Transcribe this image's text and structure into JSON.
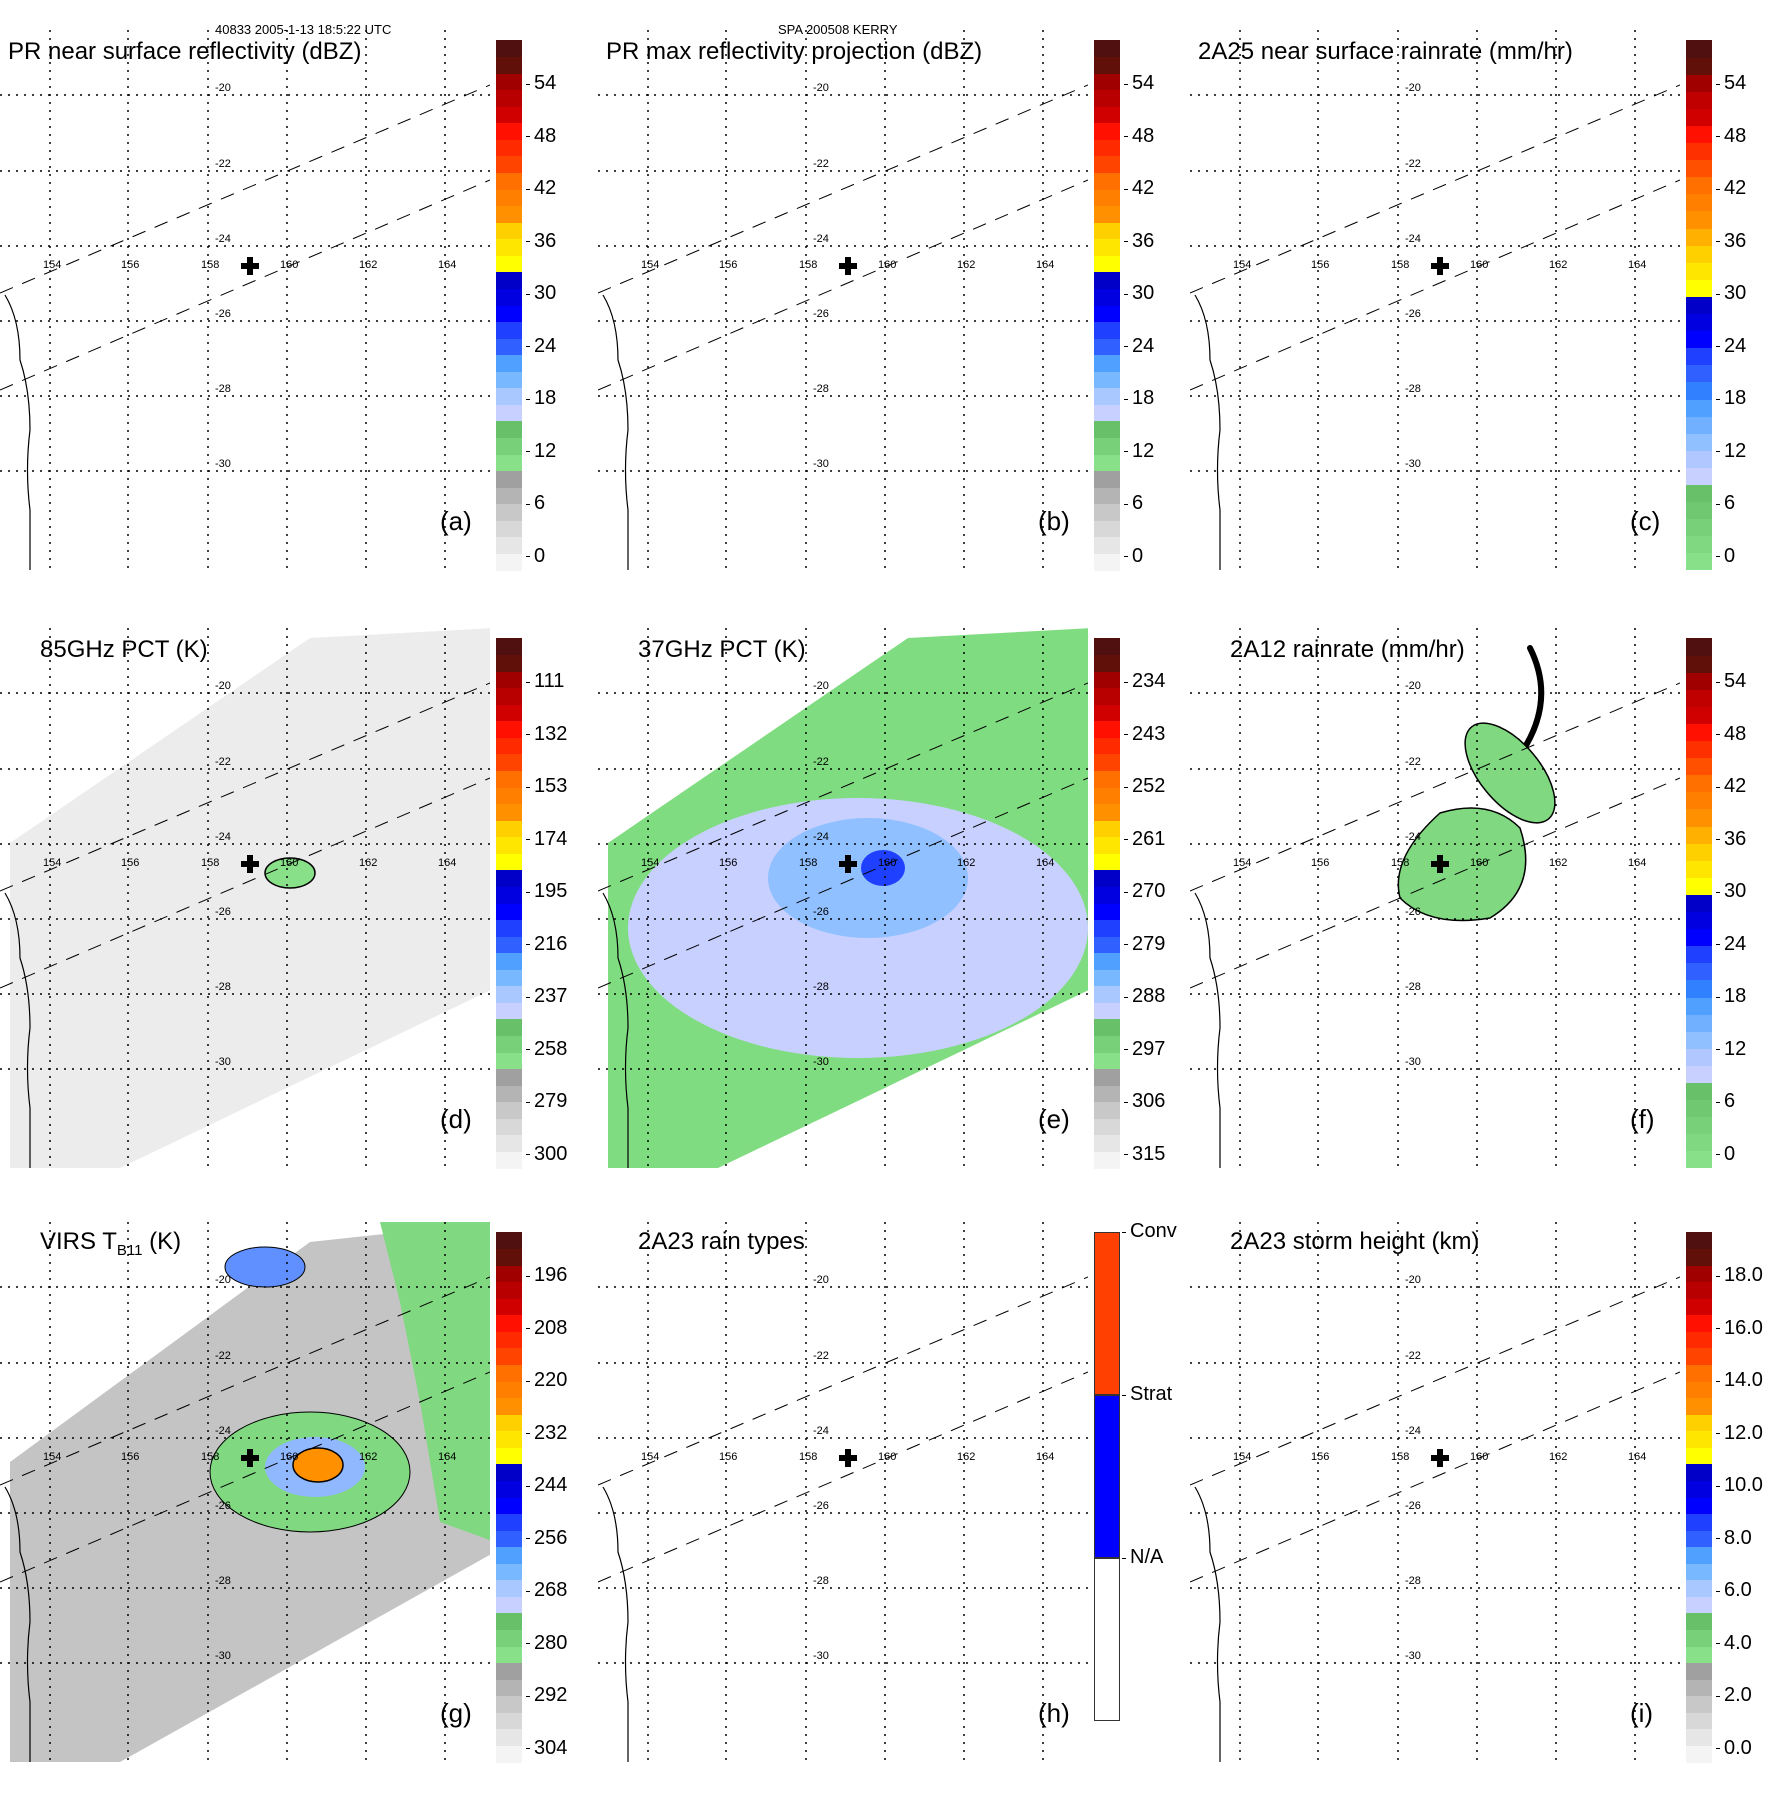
{
  "header": {
    "left": "40833 2005-1-13 18:5:22 UTC",
    "center": "SPA 200508 KERRY"
  },
  "map_axes": {
    "lon_labels": [
      "154",
      "156",
      "158",
      "160",
      "162",
      "164"
    ],
    "lat_labels": [
      "-20",
      "-22",
      "-24",
      "-26",
      "-28",
      "-30"
    ],
    "storm_center_marker": "plus-icon"
  },
  "panels": [
    {
      "id": "a",
      "title": "PR near surface reflectivity (dBZ)",
      "label": "(a)",
      "colorbar": {
        "ticks": [
          "54",
          "48",
          "42",
          "36",
          "30",
          "24",
          "18",
          "12",
          "6",
          "0"
        ],
        "range": [
          0,
          60
        ]
      }
    },
    {
      "id": "b",
      "title": "PR max reflectivity projection (dBZ)",
      "label": "(b)",
      "colorbar": {
        "ticks": [
          "54",
          "48",
          "42",
          "36",
          "30",
          "24",
          "18",
          "12",
          "6",
          "0"
        ],
        "range": [
          0,
          60
        ]
      }
    },
    {
      "id": "c",
      "title": "2A25 near surface rainrate (mm/hr)",
      "label": "(c)",
      "colorbar": {
        "ticks": [
          "54",
          "48",
          "42",
          "36",
          "30",
          "24",
          "18",
          "12",
          "6",
          "0"
        ],
        "range": [
          0,
          60
        ]
      }
    },
    {
      "id": "d",
      "title": "85GHz PCT (K)",
      "label": "(d)",
      "colorbar": {
        "ticks": [
          "111",
          "132",
          "153",
          "174",
          "195",
          "216",
          "237",
          "258",
          "279",
          "300"
        ],
        "range": [
          300,
          90
        ]
      }
    },
    {
      "id": "e",
      "title": "37GHz PCT (K)",
      "label": "(e)",
      "colorbar": {
        "ticks": [
          "234",
          "243",
          "252",
          "261",
          "270",
          "279",
          "288",
          "297",
          "306",
          "315"
        ],
        "range": [
          315,
          225
        ]
      }
    },
    {
      "id": "f",
      "title": "2A12 rainrate (mm/hr)",
      "label": "(f)",
      "colorbar": {
        "ticks": [
          "54",
          "48",
          "42",
          "36",
          "30",
          "24",
          "18",
          "12",
          "6",
          "0"
        ],
        "range": [
          0,
          60
        ]
      }
    },
    {
      "id": "g",
      "title_main": "VIRS T",
      "title_sub": "B11",
      "title_unit": " (K)",
      "label": "(g)",
      "colorbar": {
        "ticks": [
          "196",
          "208",
          "220",
          "232",
          "244",
          "256",
          "268",
          "280",
          "292",
          "304"
        ],
        "range": [
          304,
          184
        ]
      }
    },
    {
      "id": "h",
      "title": "2A23 rain types",
      "label": "(h)",
      "colorbar": {
        "categories": [
          "Conv",
          "Strat",
          "N/A"
        ]
      }
    },
    {
      "id": "i",
      "title": "2A23 storm height (km)",
      "label": "(i)",
      "colorbar": {
        "ticks": [
          "18.0",
          "16.0",
          "14.0",
          "12.0",
          "10.0",
          "8.0",
          "6.0",
          "4.0",
          "2.0",
          "0.0"
        ],
        "range": [
          0,
          20
        ]
      }
    }
  ],
  "colors": {
    "scale_dbz": [
      "#f4f4f4",
      "#e6e6e6",
      "#d8d8d8",
      "#c8c8c8",
      "#b4b4b4",
      "#a0a0a0",
      "#88e088",
      "#78d078",
      "#68c068",
      "#c8d0ff",
      "#a8c8ff",
      "#78b8ff",
      "#50a0ff",
      "#3060ff",
      "#2040ff",
      "#0000ff",
      "#0000e0",
      "#0000c8",
      "#ffff00",
      "#ffe600",
      "#ffd000",
      "#ff9000",
      "#ff8000",
      "#ff7000",
      "#ff4400",
      "#ff2a00",
      "#ff1000",
      "#d00000",
      "#b80000",
      "#a00000",
      "#601008",
      "#501010"
    ],
    "scale_rain": [
      "#88e088",
      "#80d880",
      "#78d078",
      "#70c870",
      "#68c068",
      "#c8d0ff",
      "#b0c8ff",
      "#90c0ff",
      "#70b0ff",
      "#50a0ff",
      "#3080ff",
      "#3060ff",
      "#2040ff",
      "#0000ff",
      "#0000e0",
      "#0000c8",
      "#ffff00",
      "#ffe600",
      "#ffd000",
      "#ffb000",
      "#ff9000",
      "#ff8000",
      "#ff7000",
      "#ff5000",
      "#ff3000",
      "#ff1000",
      "#d00000",
      "#c00000",
      "#a00000",
      "#601008",
      "#501010"
    ],
    "conv": "#ff4000",
    "strat": "#0000ff",
    "na": "#ffffff"
  }
}
